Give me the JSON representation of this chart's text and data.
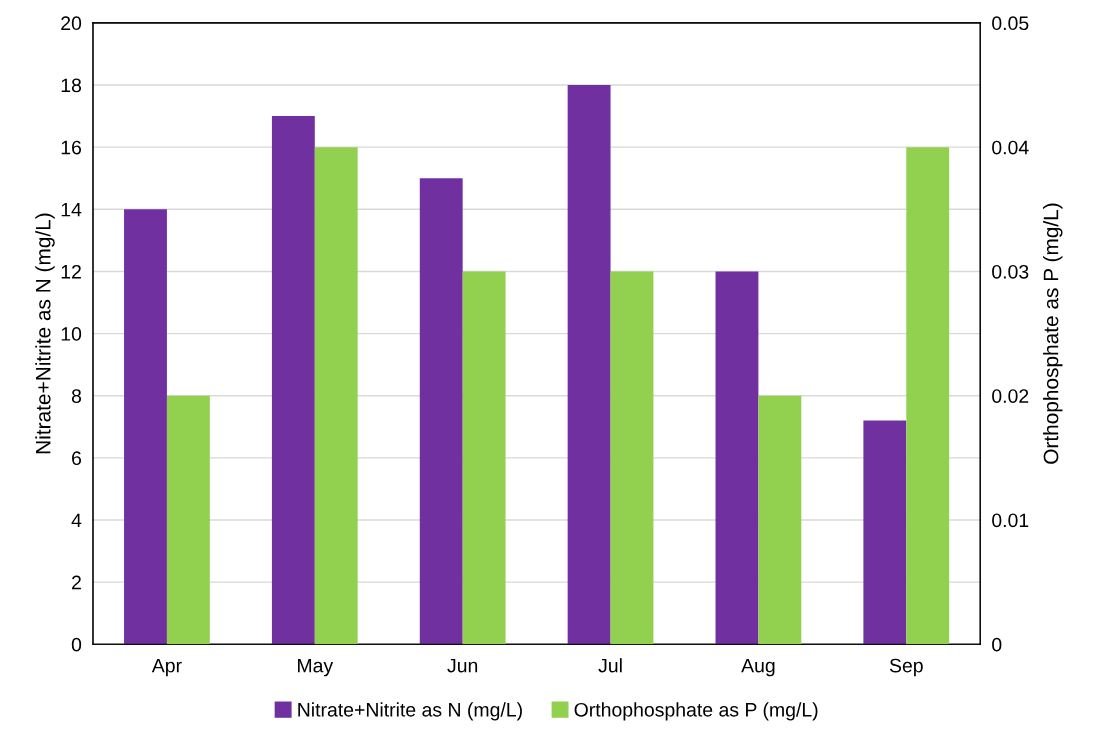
{
  "chart_data": {
    "type": "bar",
    "ylabel": "Nitrate+Nitrite as N (mg/L)",
    "y2label": "Orthophosphate as P (mg/L)",
    "categories": [
      "Apr",
      "May",
      "Jun",
      "Jul",
      "Aug",
      "Sep"
    ],
    "series": [
      {
        "name": "Nitrate+Nitrite as N (mg/L)",
        "color": "#7030a0",
        "values": [
          14,
          17,
          15,
          18,
          12,
          7.2
        ]
      },
      {
        "name": "Orthophosphate as P (mg/L)",
        "color": "#92d050",
        "axis": "y2",
        "values": [
          0.02,
          0.04,
          0.03,
          0.03,
          0.02,
          0.04
        ]
      }
    ],
    "ylim": [
      0,
      20
    ],
    "yticks": [
      0,
      2,
      4,
      6,
      8,
      10,
      12,
      14,
      16,
      18,
      20
    ],
    "y2lim": [
      0,
      0.05
    ],
    "y2ticks": [
      0,
      0.01,
      0.02,
      0.03,
      0.04,
      0.05
    ],
    "grid": "y",
    "legend": "bottom"
  }
}
